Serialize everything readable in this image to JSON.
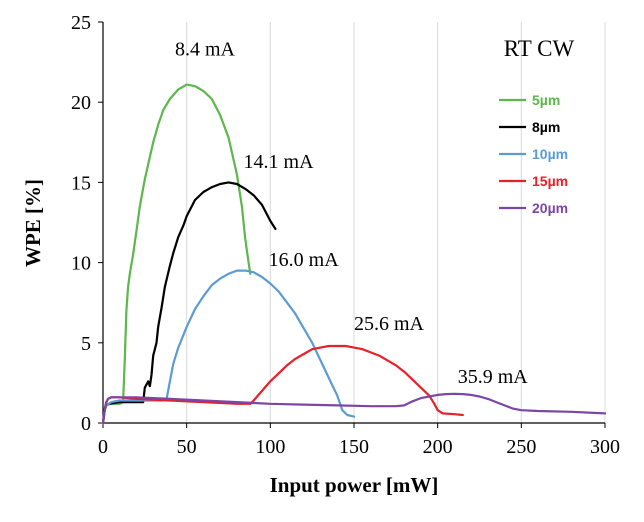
{
  "chart_data": {
    "type": "line",
    "xlabel": "Input power [mW]",
    "ylabel": "WPE [%]",
    "xlim": [
      0,
      300
    ],
    "ylim": [
      0,
      25
    ],
    "xticks": [
      "0",
      "50",
      "100",
      "150",
      "200",
      "250",
      "300"
    ],
    "yticks": [
      "0",
      "5",
      "10",
      "15",
      "20",
      "25"
    ],
    "grid": "vertical",
    "condition_label": "RT CW",
    "legend_position": "right",
    "series": [
      {
        "name": "5µm",
        "color": "#5cb84a",
        "points": [
          [
            0,
            0
          ],
          [
            1,
            0.8
          ],
          [
            2,
            1.1
          ],
          [
            3,
            1.2
          ],
          [
            5,
            1.2
          ],
          [
            8,
            1.2
          ],
          [
            10,
            1.2
          ],
          [
            12,
            1.3
          ],
          [
            13,
            4
          ],
          [
            14,
            7
          ],
          [
            15,
            8.5
          ],
          [
            16,
            9.3
          ],
          [
            18,
            10.5
          ],
          [
            20,
            12
          ],
          [
            22,
            13.5
          ],
          [
            25,
            15.2
          ],
          [
            28,
            16.6
          ],
          [
            30,
            17.5
          ],
          [
            33,
            18.6
          ],
          [
            36,
            19.5
          ],
          [
            40,
            20.2
          ],
          [
            45,
            20.8
          ],
          [
            50,
            21.1
          ],
          [
            55,
            21
          ],
          [
            60,
            20.7
          ],
          [
            65,
            20.2
          ],
          [
            70,
            19.2
          ],
          [
            75,
            17.8
          ],
          [
            80,
            15.5
          ],
          [
            83,
            13.5
          ],
          [
            85,
            11.5
          ],
          [
            87,
            10
          ],
          [
            88,
            9.3
          ]
        ]
      },
      {
        "name": "8µm",
        "color": "#000000",
        "points": [
          [
            0,
            0
          ],
          [
            1,
            0.8
          ],
          [
            2,
            1.1
          ],
          [
            4,
            1.2
          ],
          [
            10,
            1.3
          ],
          [
            15,
            1.3
          ],
          [
            20,
            1.3
          ],
          [
            24,
            1.3
          ],
          [
            25,
            2.2
          ],
          [
            27,
            2.6
          ],
          [
            28,
            2.3
          ],
          [
            29,
            3
          ],
          [
            30,
            4.2
          ],
          [
            32,
            5
          ],
          [
            33,
            6
          ],
          [
            35,
            7.2
          ],
          [
            37,
            8.5
          ],
          [
            40,
            9.8
          ],
          [
            42,
            10.6
          ],
          [
            45,
            11.6
          ],
          [
            48,
            12.3
          ],
          [
            50,
            12.9
          ],
          [
            55,
            13.9
          ],
          [
            60,
            14.4
          ],
          [
            65,
            14.7
          ],
          [
            70,
            14.9
          ],
          [
            75,
            15
          ],
          [
            80,
            14.9
          ],
          [
            85,
            14.6
          ],
          [
            90,
            14.2
          ],
          [
            95,
            13.6
          ],
          [
            100,
            12.6
          ],
          [
            103,
            12.1
          ]
        ]
      },
      {
        "name": "10µm",
        "color": "#5b9bd5",
        "points": [
          [
            0,
            0
          ],
          [
            1,
            0.8
          ],
          [
            2,
            1.1
          ],
          [
            5,
            1.3
          ],
          [
            10,
            1.4
          ],
          [
            20,
            1.4
          ],
          [
            30,
            1.4
          ],
          [
            35,
            1.4
          ],
          [
            38,
            1.5
          ],
          [
            40,
            2.6
          ],
          [
            42,
            3.7
          ],
          [
            45,
            4.7
          ],
          [
            50,
            6
          ],
          [
            55,
            7.1
          ],
          [
            60,
            7.9
          ],
          [
            65,
            8.6
          ],
          [
            70,
            9
          ],
          [
            75,
            9.3
          ],
          [
            80,
            9.5
          ],
          [
            85,
            9.5
          ],
          [
            90,
            9.4
          ],
          [
            95,
            9.1
          ],
          [
            100,
            8.7
          ],
          [
            105,
            8.2
          ],
          [
            110,
            7.5
          ],
          [
            115,
            6.8
          ],
          [
            120,
            5.9
          ],
          [
            125,
            5
          ],
          [
            130,
            3.9
          ],
          [
            135,
            2.8
          ],
          [
            140,
            1.7
          ],
          [
            143,
            0.8
          ],
          [
            146,
            0.5
          ],
          [
            150,
            0.4
          ]
        ]
      },
      {
        "name": "15µm",
        "color": "#e8202a",
        "points": [
          [
            0,
            0
          ],
          [
            1,
            0.8
          ],
          [
            2,
            1.3
          ],
          [
            3,
            1.5
          ],
          [
            5,
            1.6
          ],
          [
            10,
            1.6
          ],
          [
            20,
            1.5
          ],
          [
            40,
            1.4
          ],
          [
            60,
            1.3
          ],
          [
            80,
            1.2
          ],
          [
            88,
            1.2
          ],
          [
            90,
            1.4
          ],
          [
            95,
            2
          ],
          [
            100,
            2.6
          ],
          [
            105,
            3.1
          ],
          [
            110,
            3.6
          ],
          [
            115,
            4
          ],
          [
            120,
            4.3
          ],
          [
            125,
            4.6
          ],
          [
            130,
            4.7
          ],
          [
            135,
            4.8
          ],
          [
            140,
            4.8
          ],
          [
            145,
            4.8
          ],
          [
            150,
            4.7
          ],
          [
            155,
            4.6
          ],
          [
            160,
            4.4
          ],
          [
            165,
            4.2
          ],
          [
            170,
            3.9
          ],
          [
            175,
            3.6
          ],
          [
            180,
            3.2
          ],
          [
            185,
            2.7
          ],
          [
            190,
            2.2
          ],
          [
            195,
            1.7
          ],
          [
            198,
            1.2
          ],
          [
            200,
            0.8
          ],
          [
            203,
            0.6
          ],
          [
            210,
            0.55
          ],
          [
            215,
            0.5
          ]
        ]
      },
      {
        "name": "20µm",
        "color": "#7b46a6",
        "points": [
          [
            0,
            0
          ],
          [
            1,
            0.9
          ],
          [
            2,
            1.3
          ],
          [
            3,
            1.5
          ],
          [
            5,
            1.6
          ],
          [
            10,
            1.6
          ],
          [
            20,
            1.6
          ],
          [
            40,
            1.5
          ],
          [
            60,
            1.4
          ],
          [
            80,
            1.3
          ],
          [
            100,
            1.2
          ],
          [
            120,
            1.15
          ],
          [
            140,
            1.1
          ],
          [
            160,
            1.05
          ],
          [
            175,
            1.05
          ],
          [
            180,
            1.1
          ],
          [
            185,
            1.35
          ],
          [
            190,
            1.55
          ],
          [
            195,
            1.65
          ],
          [
            200,
            1.75
          ],
          [
            205,
            1.8
          ],
          [
            210,
            1.82
          ],
          [
            215,
            1.8
          ],
          [
            220,
            1.75
          ],
          [
            225,
            1.65
          ],
          [
            230,
            1.5
          ],
          [
            235,
            1.3
          ],
          [
            240,
            1.1
          ],
          [
            245,
            0.9
          ],
          [
            250,
            0.8
          ],
          [
            260,
            0.75
          ],
          [
            280,
            0.7
          ],
          [
            300,
            0.6
          ]
        ]
      }
    ],
    "annotations": [
      {
        "text": "8.4 mA",
        "x": 43,
        "y": 22.9
      },
      {
        "text": "14.1 mA",
        "x": 84,
        "y": 15.9
      },
      {
        "text": "16.0 mA",
        "x": 99,
        "y": 9.8
      },
      {
        "text": "25.6 mA",
        "x": 150,
        "y": 5.8
      },
      {
        "text": "35.9 mA",
        "x": 212,
        "y": 2.5
      }
    ]
  }
}
